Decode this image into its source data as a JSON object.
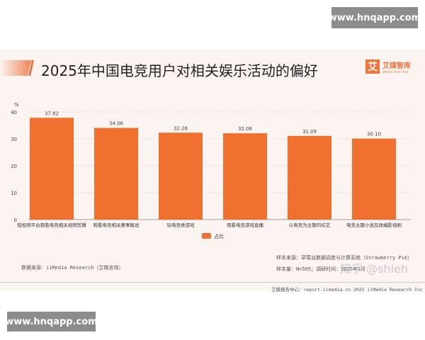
{
  "watermarks": {
    "top": "www.hnqapp.com",
    "bottom": "www.hnqapp.com",
    "zhihu": "知乎 @shieh"
  },
  "header": {
    "title": "2025年中国电竞用户对相关娱乐活动的偏好",
    "logo_mark": "艾",
    "logo_name": "艾媒智库",
    "logo_sub": "iiMedia Think Tank"
  },
  "chart_data": {
    "type": "bar",
    "ylabel": "%",
    "ylim": [
      0,
      40
    ],
    "yticks": [
      "0",
      "10",
      "20",
      "30",
      "40"
    ],
    "grid": true,
    "legend_position": "bottom",
    "categories": [
      "短视频平台观看电竞相关视频剪辑",
      "观看电竞相关赛事解说",
      "玩电竞类游戏",
      "观看电竞游戏直播",
      "以电竞为主题的综艺",
      "电竞主题小说及改编影视剧"
    ],
    "series": [
      {
        "name": "占比",
        "values": [
          37.82,
          34.06,
          32.28,
          32.08,
          31.09,
          30.1
        ],
        "labels": [
          "37.82",
          "34.06",
          "32.28",
          "32.08",
          "31.09",
          "30.10"
        ],
        "color": "#f07030"
      }
    ]
  },
  "footer": {
    "source": "数据来源：iiMedia Research（艾媒咨询）",
    "sample_source": "样本来源：草莓派数据调查与计算系统（Strawberry Pie）",
    "sample_size": "样本量：N=505；调研时间：2025年1月",
    "report_center": "艾媒报告中心：report.iimedia.cn  2025 iiMedia Research Inc"
  }
}
